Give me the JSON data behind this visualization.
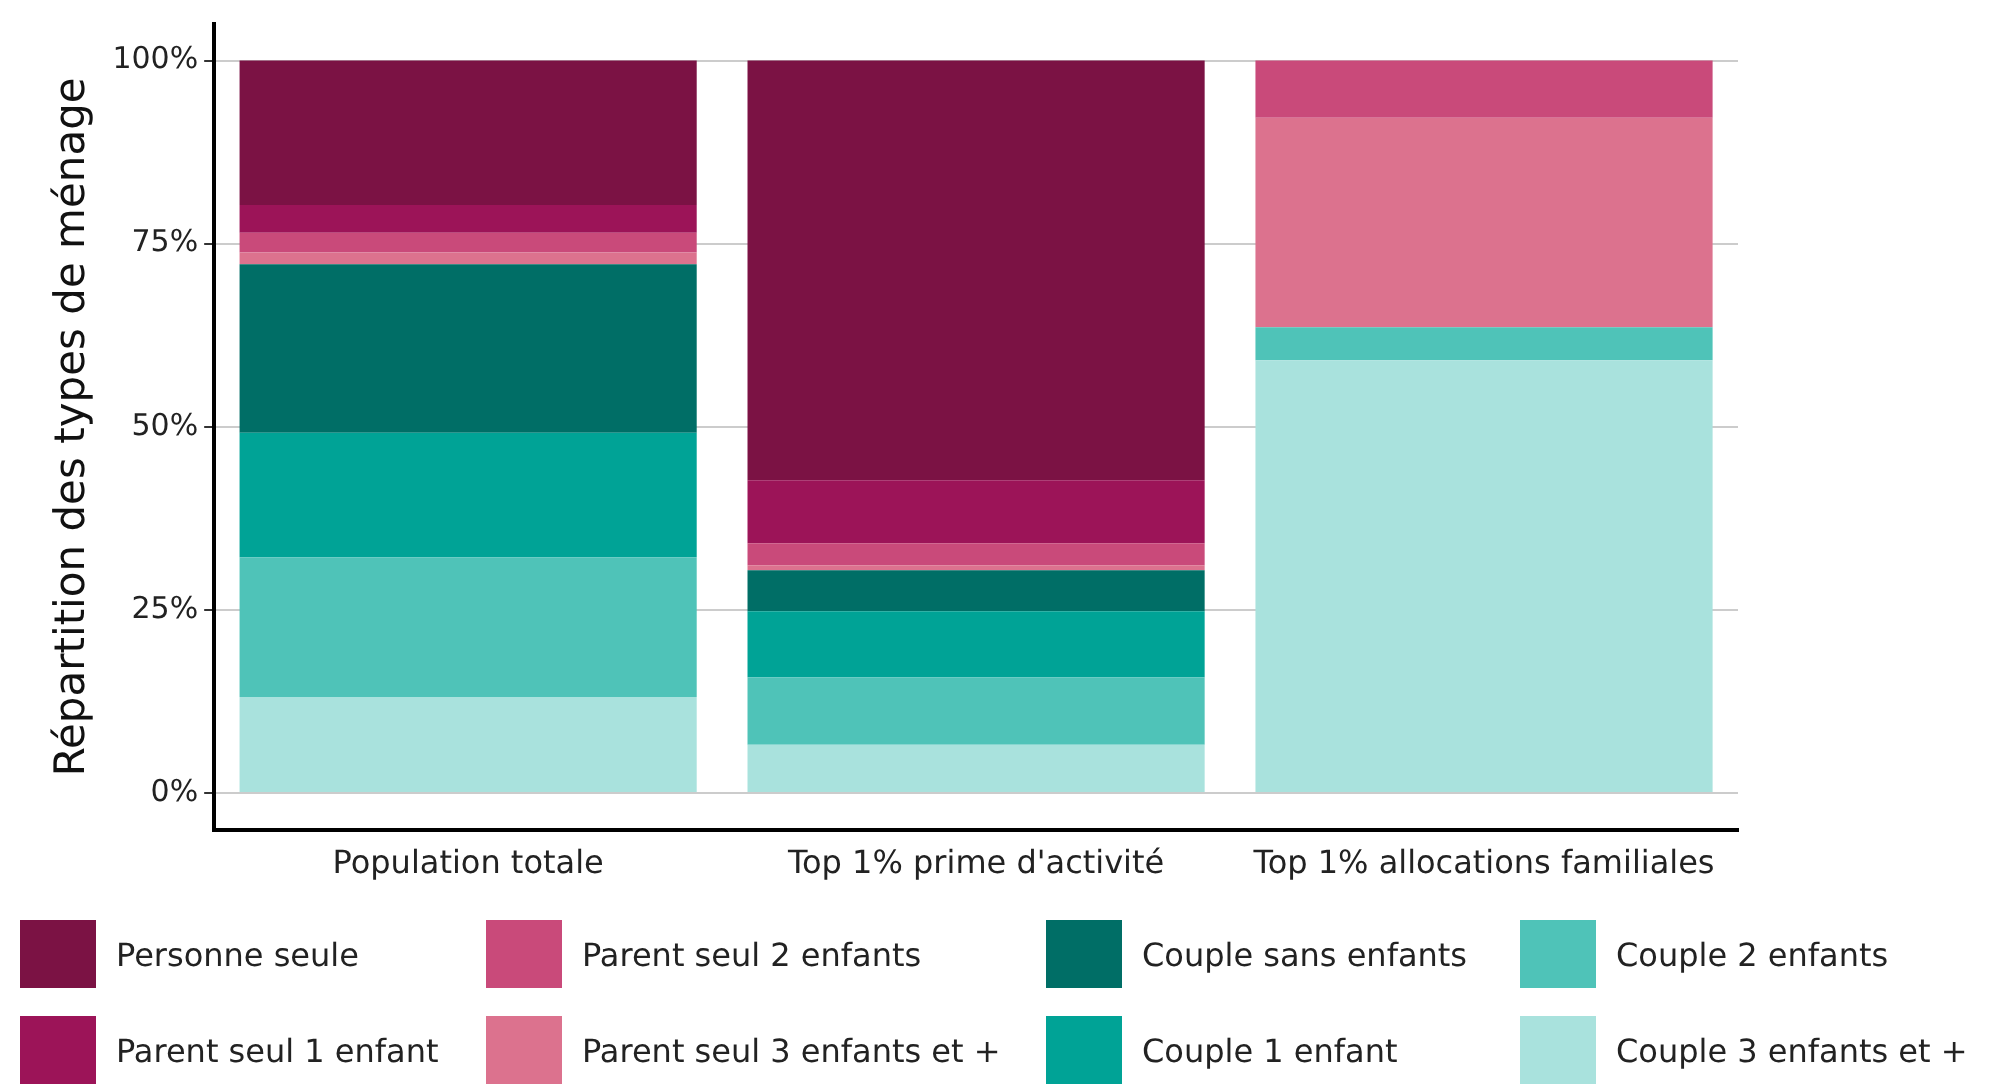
{
  "chart_data": {
    "type": "bar",
    "stacked": true,
    "ylabel": "Répartition des types de ménage",
    "categories": [
      "Population totale",
      "Top 1% prime d'activité",
      "Top 1% allocations familiales"
    ],
    "series": [
      {
        "name": "Couple 3 enfants et +",
        "color": "#a9e2dd",
        "values": [
          13.1,
          6.6,
          59.1
        ]
      },
      {
        "name": "Couple 2 enfants",
        "color": "#4fc3b8",
        "values": [
          19.1,
          9.2,
          4.5
        ]
      },
      {
        "name": "Couple 1 enfant",
        "color": "#00a396",
        "values": [
          17.0,
          9.0,
          0
        ]
      },
      {
        "name": "Couple sans enfants",
        "color": "#006e66",
        "values": [
          23.0,
          5.6,
          0
        ]
      },
      {
        "name": "Parent seul 3 enfants et +",
        "color": "#dc728e",
        "values": [
          1.6,
          0.7,
          28.6
        ]
      },
      {
        "name": "Parent seul 2 enfants",
        "color": "#c94a7a",
        "values": [
          2.7,
          3.0,
          7.8
        ]
      },
      {
        "name": "Parent seul 1 enfant",
        "color": "#9c1458",
        "values": [
          3.8,
          8.6,
          0
        ]
      },
      {
        "name": "Personne seule",
        "color": "#7b1244",
        "values": [
          19.7,
          57.3,
          0
        ]
      }
    ],
    "ylim": [
      -5,
      105
    ],
    "yticks": [
      {
        "value": 0,
        "label": "0%"
      },
      {
        "value": 25,
        "label": "25%"
      },
      {
        "value": 50,
        "label": "50%"
      },
      {
        "value": 75,
        "label": "75%"
      },
      {
        "value": 100,
        "label": "100%"
      }
    ],
    "grid": "y",
    "legend": "bottom"
  }
}
